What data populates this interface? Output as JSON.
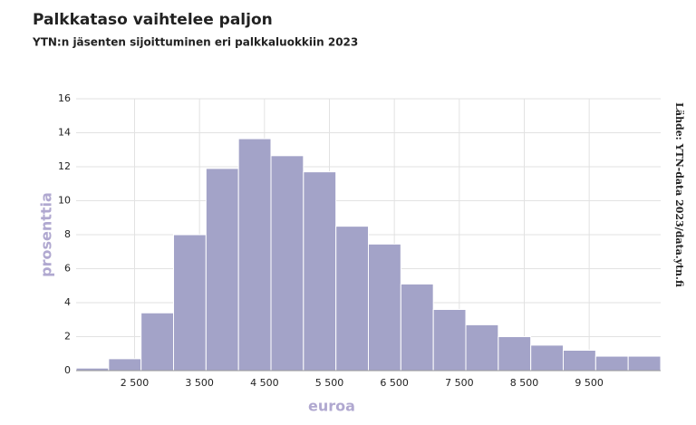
{
  "chart_data": {
    "type": "histogram",
    "title": "Palkkataso vaihtelee paljon",
    "subtitle": "YTN:n jäsenten sijoittuminen eri palkkaluokkiin 2023",
    "source": "Lähde: YTN-data 2023/data.ytn.fi",
    "x_label": "euroa",
    "y_label": "prosenttia",
    "bins": [
      1600,
      2100,
      2600,
      3100,
      3600,
      4100,
      4600,
      5100,
      5600,
      6100,
      6600,
      7100,
      7600,
      8100,
      8600,
      9100,
      9600,
      10100,
      10600
    ],
    "values": [
      0.15,
      0.7,
      3.4,
      8.0,
      11.9,
      13.65,
      12.65,
      11.7,
      8.5,
      7.45,
      5.1,
      3.6,
      2.7,
      2.0,
      1.5,
      1.2,
      0.85,
      0.85
    ],
    "color": "#a3a3c8",
    "grid": true,
    "xlim": [
      1600,
      10600
    ],
    "ylim": [
      0,
      16
    ],
    "xticks": [
      {
        "value": 2500,
        "label": "2 500"
      },
      {
        "value": 3500,
        "label": "3 500"
      },
      {
        "value": 4500,
        "label": "4 500"
      },
      {
        "value": 5500,
        "label": "5 500"
      },
      {
        "value": 6500,
        "label": "6 500"
      },
      {
        "value": 7500,
        "label": "7 500"
      },
      {
        "value": 8500,
        "label": "8 500"
      },
      {
        "value": 9500,
        "label": "9 500"
      }
    ],
    "yticks": [
      0,
      2,
      4,
      6,
      8,
      10,
      12,
      14,
      16
    ]
  }
}
